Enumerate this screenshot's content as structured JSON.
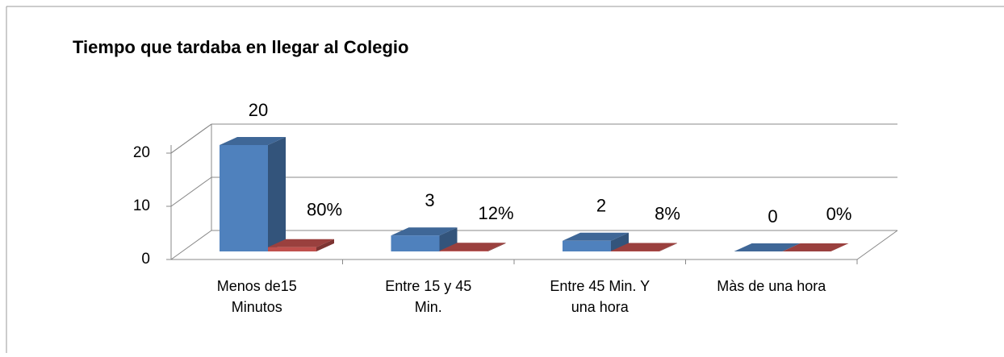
{
  "chart_data": {
    "type": "bar3d",
    "title": "Tiempo que tardaba en llegar al Colegio",
    "categories": [
      "Menos de15 Minutos",
      "Entre 15 y 45 Min.",
      "Entre 45 Min. Y una hora",
      "Màs de una hora"
    ],
    "series": [
      {
        "color": "#4f81bd",
        "values": [
          20,
          3,
          2,
          0
        ]
      },
      {
        "color": "#c0504d",
        "values": [
          0.8,
          0.12,
          0.08,
          0
        ],
        "value_labels": [
          "80%",
          "12%",
          "8%",
          "0%"
        ]
      }
    ],
    "ylim": [
      0,
      20
    ],
    "yticks": [
      0,
      10,
      20
    ],
    "grid": true
  }
}
